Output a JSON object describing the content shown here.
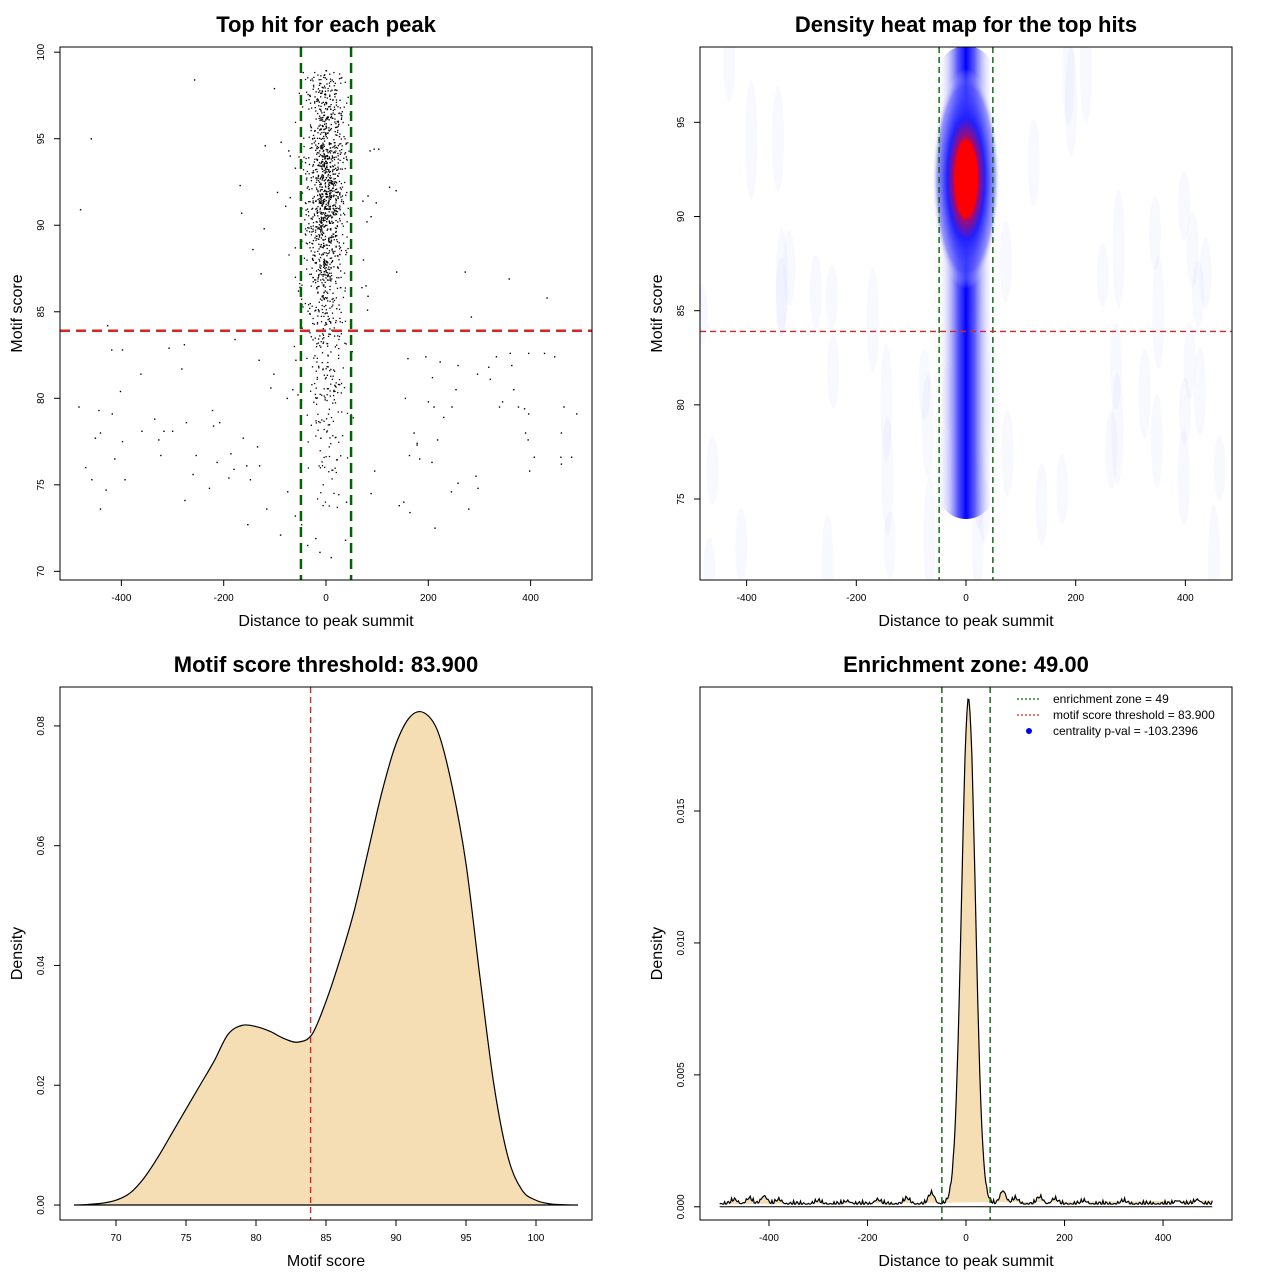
{
  "chart_data": [
    {
      "id": "scatter",
      "type": "scatter",
      "title": "Top hit for each peak",
      "xlabel": "Distance to peak summit",
      "ylabel": "Motif score",
      "xlim": [
        -520,
        520
      ],
      "ylim": [
        69.5,
        100.3
      ],
      "xticks": [
        -400,
        -200,
        0,
        200,
        400
      ],
      "yticks": [
        70,
        75,
        80,
        85,
        90,
        95,
        100
      ],
      "vlines": [
        -49,
        49
      ],
      "hline": 83.9,
      "colors": {
        "points": "#000000",
        "vline": "#006400",
        "hline": "#d62728"
      },
      "points": [
        [
          -257,
          98.4
        ],
        [
          -101,
          97.9
        ],
        [
          -459,
          95
        ],
        [
          -88,
          94.8
        ],
        [
          -119,
          94.6
        ],
        [
          -73,
          94.3
        ],
        [
          -70,
          94
        ],
        [
          -60,
          93.3
        ],
        [
          -34,
          93.9
        ],
        [
          86,
          94.3
        ],
        [
          94,
          94.4
        ],
        [
          103,
          94.4
        ],
        [
          -168,
          92.3
        ],
        [
          -95,
          91.9
        ],
        [
          -70,
          91.6
        ],
        [
          -79,
          91.1
        ],
        [
          -165,
          90.7
        ],
        [
          -121,
          89.8
        ],
        [
          -480,
          90.9
        ],
        [
          124,
          92.2
        ],
        [
          137,
          92
        ],
        [
          82,
          91.7
        ],
        [
          72,
          91.4
        ],
        [
          98,
          91.3
        ],
        [
          88,
          90.5
        ],
        [
          80,
          90.2
        ],
        [
          -127,
          87.2
        ],
        [
          -143,
          88.6
        ],
        [
          -60,
          88.7
        ],
        [
          -60,
          87
        ],
        [
          -54,
          86.2
        ],
        [
          -47,
          85.4
        ],
        [
          -32,
          85.2
        ],
        [
          73,
          88
        ],
        [
          78,
          86.5
        ],
        [
          70,
          86.4
        ],
        [
          82,
          85.9
        ],
        [
          138,
          87.3
        ],
        [
          81,
          85.1
        ],
        [
          358,
          86.9
        ],
        [
          272,
          87.3
        ],
        [
          432,
          85.8
        ],
        [
          284,
          84.7
        ],
        [
          -427,
          84.2
        ],
        [
          -419,
          82.8
        ],
        [
          -398,
          82.8
        ],
        [
          -307,
          82.9
        ],
        [
          -277,
          83.1
        ],
        [
          -178,
          83.4
        ],
        [
          -62,
          83
        ],
        [
          -131,
          82.2
        ],
        [
          -59,
          82.2
        ],
        [
          -282,
          81.7
        ],
        [
          -362,
          81.4
        ],
        [
          195,
          82.4
        ],
        [
          223,
          82.1
        ],
        [
          258,
          81.9
        ],
        [
          296,
          81.4
        ],
        [
          208,
          81.2
        ],
        [
          321,
          81.1
        ],
        [
          363,
          81.9
        ],
        [
          333,
          82.4
        ],
        [
          396,
          82.6
        ],
        [
          427,
          82.6
        ],
        [
          447,
          82.4
        ],
        [
          360,
          82.6
        ],
        [
          -402,
          80.4
        ],
        [
          -418,
          79.1
        ],
        [
          -444,
          79.3
        ],
        [
          -483,
          79.5
        ],
        [
          -335,
          78.8
        ],
        [
          -317,
          78.1
        ],
        [
          -327,
          77.6
        ],
        [
          -300,
          78.1
        ],
        [
          -273,
          78.6
        ],
        [
          -222,
          79.3
        ],
        [
          -220,
          78.4
        ],
        [
          -208,
          78.6
        ],
        [
          -398,
          77.5
        ],
        [
          -413,
          76.5
        ],
        [
          -323,
          76.7
        ],
        [
          -360,
          78.1
        ],
        [
          -441,
          78
        ],
        [
          -451,
          77.7
        ],
        [
          -213,
          76.3
        ],
        [
          -254,
          76.7
        ],
        [
          -186,
          76.8
        ],
        [
          -180,
          75.9
        ],
        [
          -162,
          77.7
        ],
        [
          -155,
          76.1
        ],
        [
          -130,
          76.1
        ],
        [
          -134,
          77.2
        ],
        [
          -148,
          75.3
        ],
        [
          -190,
          75.4
        ],
        [
          -260,
          75.6
        ],
        [
          -276,
          74.1
        ],
        [
          -228,
          74.8
        ],
        [
          -393,
          75.3
        ],
        [
          -458,
          75.3
        ],
        [
          -470,
          76
        ],
        [
          -430,
          74.7
        ],
        [
          -441,
          73.6
        ],
        [
          -116,
          73.6
        ],
        [
          -153,
          72.7
        ],
        [
          -75,
          74.6
        ],
        [
          -89,
          72.1
        ],
        [
          -60,
          73.2
        ],
        [
          -48,
          72.7
        ],
        [
          -36,
          71.5
        ],
        [
          -20,
          71.9
        ],
        [
          -12,
          71.1
        ],
        [
          10,
          70.8
        ],
        [
          38,
          71.8
        ],
        [
          22,
          73.7
        ],
        [
          40,
          74
        ],
        [
          95,
          75.8
        ],
        [
          88,
          74.5
        ],
        [
          183,
          76.5
        ],
        [
          178,
          77.4
        ],
        [
          218,
          77.6
        ],
        [
          230,
          78.9
        ],
        [
          207,
          76.3
        ],
        [
          258,
          75.1
        ],
        [
          293,
          75.5
        ],
        [
          297,
          74.8
        ],
        [
          279,
          73.6
        ],
        [
          245,
          74.6
        ],
        [
          213,
          72.5
        ],
        [
          143,
          73.8
        ],
        [
          152,
          74
        ],
        [
          164,
          73.4
        ],
        [
          163,
          76.7
        ],
        [
          172,
          78
        ],
        [
          178,
          77.3
        ],
        [
          155,
          80
        ],
        [
          160,
          82.3
        ],
        [
          200,
          79.8
        ],
        [
          211,
          79.5
        ],
        [
          246,
          79.5
        ],
        [
          339,
          79.5
        ],
        [
          345,
          79.8
        ],
        [
          376,
          79.5
        ],
        [
          388,
          79.4
        ],
        [
          396,
          79.1
        ],
        [
          465,
          79.5
        ],
        [
          460,
          78
        ],
        [
          490,
          79.1
        ],
        [
          390,
          78
        ],
        [
          395,
          77.6
        ],
        [
          407,
          76.6
        ],
        [
          480,
          76.6
        ],
        [
          460,
          76.2
        ],
        [
          398,
          75.8
        ],
        [
          459,
          76.6
        ],
        [
          367,
          80.5
        ],
        [
          318,
          81.8
        ],
        [
          254,
          80.5
        ],
        [
          -108,
          80.6
        ],
        [
          -102,
          81.4
        ],
        [
          -76,
          80
        ],
        [
          -65,
          80.5
        ],
        [
          -55,
          80.2
        ],
        [
          -48,
          79.9
        ]
      ],
      "cloud": {
        "count": 1400,
        "x_sd": 18,
        "y_range": [
          73,
          99
        ]
      }
    },
    {
      "id": "heatmap",
      "type": "heatmap",
      "title": "Density heat map for the top hits",
      "xlabel": "Distance to peak summit",
      "ylabel": "Motif score",
      "xlim": [
        -485,
        485
      ],
      "ylim": [
        70.7,
        99
      ],
      "xticks": [
        -400,
        -200,
        0,
        200,
        400
      ],
      "yticks": [
        75,
        80,
        85,
        90,
        95
      ],
      "vlines": [
        -49,
        49
      ],
      "hline": 83.9,
      "colors": {
        "low": "#ffffff",
        "mid": "#0000ff",
        "high": "#ff0000",
        "vline": "#006400",
        "hline": "#d62728"
      },
      "hotspot": {
        "x": 0,
        "y": 92,
        "x_sd": 14,
        "y_sd": 3.2
      },
      "column": {
        "x": 0,
        "y_range": [
          75,
          98
        ],
        "x_sd": 14
      }
    },
    {
      "id": "score_density",
      "type": "area",
      "title": "Motif score threshold: 83.900",
      "xlabel": "Motif score",
      "ylabel": "Density",
      "xlim": [
        66,
        104
      ],
      "ylim": [
        -0.0025,
        0.0865
      ],
      "xticks": [
        70,
        75,
        80,
        85,
        90,
        95,
        100
      ],
      "yticks": [
        0.0,
        0.02,
        0.04,
        0.06,
        0.08
      ],
      "ytick_labels": [
        "0.00",
        "0.02",
        "0.04",
        "0.06",
        "0.08"
      ],
      "vline": 83.9,
      "colors": {
        "fill": "#f5deb3",
        "line": "#000000",
        "vline": "#d62728"
      },
      "x": [
        67,
        68,
        69,
        70,
        71,
        72,
        73,
        74,
        75,
        76,
        77,
        78,
        79,
        80,
        81,
        82,
        83,
        84,
        85,
        86,
        87,
        88,
        89,
        90,
        91,
        92,
        93,
        94,
        95,
        96,
        97,
        98,
        99,
        100,
        101,
        102,
        103
      ],
      "y": [
        0,
        0.0001,
        0.0003,
        0.0008,
        0.002,
        0.0045,
        0.008,
        0.012,
        0.016,
        0.02,
        0.024,
        0.0285,
        0.03,
        0.0298,
        0.029,
        0.0278,
        0.0272,
        0.0285,
        0.034,
        0.041,
        0.049,
        0.059,
        0.069,
        0.077,
        0.0815,
        0.0822,
        0.079,
        0.07,
        0.057,
        0.038,
        0.02,
        0.008,
        0.0025,
        0.0008,
        0.0002,
        5e-05,
        0
      ]
    },
    {
      "id": "distance_density",
      "type": "area",
      "title": "Enrichment zone: 49.00",
      "xlabel": "Distance to peak summit",
      "ylabel": "Density",
      "xlim": [
        -540,
        540
      ],
      "ylim": [
        -0.0005,
        0.0197
      ],
      "xticks": [
        -400,
        -200,
        0,
        200,
        400
      ],
      "yticks": [
        0.0,
        0.005,
        0.01,
        0.015
      ],
      "ytick_labels": [
        "0.000",
        "0.005",
        "0.010",
        "0.015"
      ],
      "vlines": [
        -49,
        49
      ],
      "colors": {
        "fill": "#f5deb3",
        "line": "#000000",
        "vline": "#006400"
      },
      "peak": {
        "x": 5,
        "height": 0.0191,
        "sd": 14
      },
      "baseline": 0.0001,
      "bumps": [
        [
          -470,
          0.00015
        ],
        [
          -440,
          0.0002
        ],
        [
          -410,
          0.0003
        ],
        [
          -380,
          0.00015
        ],
        [
          -300,
          0.0001
        ],
        [
          -240,
          0.0001
        ],
        [
          -180,
          0.00015
        ],
        [
          -120,
          0.0002
        ],
        [
          -70,
          0.0004
        ],
        [
          75,
          0.0005
        ],
        [
          100,
          0.0002
        ],
        [
          150,
          0.00025
        ],
        [
          180,
          0.00018
        ],
        [
          240,
          0.0001
        ],
        [
          320,
          0.0001
        ],
        [
          430,
          0.00012
        ],
        [
          470,
          0.00015
        ]
      ],
      "legend": [
        {
          "label": "enrichment zone = 49",
          "style": "dotted-line",
          "color": "#006400"
        },
        {
          "label": "motif score threshold = 83.900",
          "style": "dotted-line",
          "color": "#d62728"
        },
        {
          "label": "centrality p-val = -103.2396",
          "style": "point",
          "color": "#0000ff"
        }
      ],
      "legend_position": "top-right"
    }
  ]
}
